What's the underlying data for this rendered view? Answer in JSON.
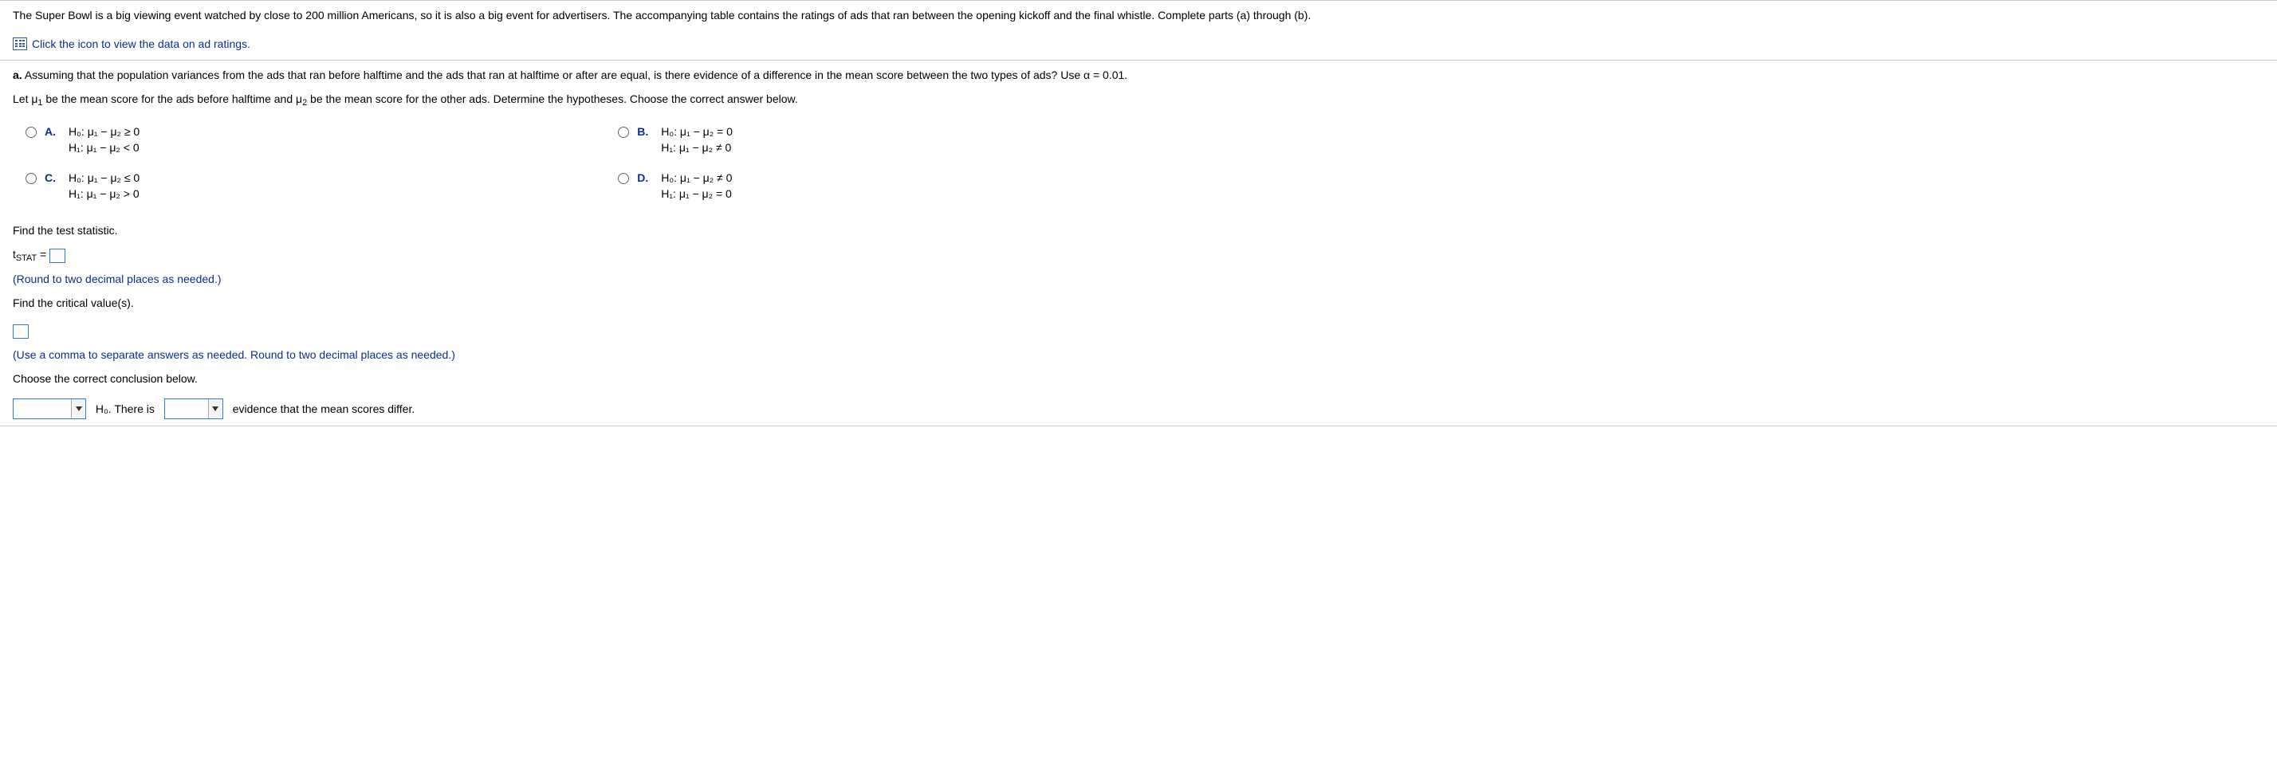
{
  "intro": {
    "text": "The Super Bowl is a big viewing event watched by close to 200 million Americans, so it is also a big event for advertisers. The accompanying table contains the ratings of ads that ran between the opening kickoff and the final whistle. Complete parts (a) through (b).",
    "data_link_label": "Click the icon to view the data on ad ratings."
  },
  "part_a": {
    "question": "Assuming that the population variances from the ads that ran before halftime and the ads that ran at halftime or after are equal, is there evidence of a difference in the mean score between the two types of ads? Use α = 0.01.",
    "letdef_prefix": "Let μ",
    "letdef_mid1": " be the mean score for the ads before halftime and μ",
    "letdef_mid2": " be the mean score for the other ads. Determine the hypotheses. Choose the correct answer below.",
    "sub1": "1",
    "sub2": "2"
  },
  "choices": {
    "A": {
      "label": "A.",
      "h0": "H₀: μ₁ − μ₂ ≥ 0",
      "h1": "H₁: μ₁ − μ₂ < 0"
    },
    "B": {
      "label": "B.",
      "h0": "H₀: μ₁ − μ₂ = 0",
      "h1": "H₁: μ₁ − μ₂ ≠ 0"
    },
    "C": {
      "label": "C.",
      "h0": "H₀: μ₁ − μ₂ ≤ 0",
      "h1": "H₁: μ₁ − μ₂ > 0"
    },
    "D": {
      "label": "D.",
      "h0": "H₀: μ₁ − μ₂ ≠ 0",
      "h1": "H₁: μ₁ − μ₂ = 0"
    }
  },
  "stat": {
    "find_stat": "Find the test statistic.",
    "tstat_prefix": "t",
    "tstat_sub": "STAT",
    "tstat_eq": " = ",
    "round_hint": "(Round to two decimal places as needed.)",
    "find_crit": "Find the critical value(s).",
    "crit_hint": "(Use a comma to separate answers as needed. Round to two decimal places as needed.)",
    "choose_concl": "Choose the correct conclusion below.",
    "h0_text": " H₀. There is ",
    "evidence_text": " evidence that the mean scores differ."
  },
  "colors": {
    "link": "#0a2f8a",
    "input_border": "#2b7de0",
    "divider": "#ccc"
  }
}
